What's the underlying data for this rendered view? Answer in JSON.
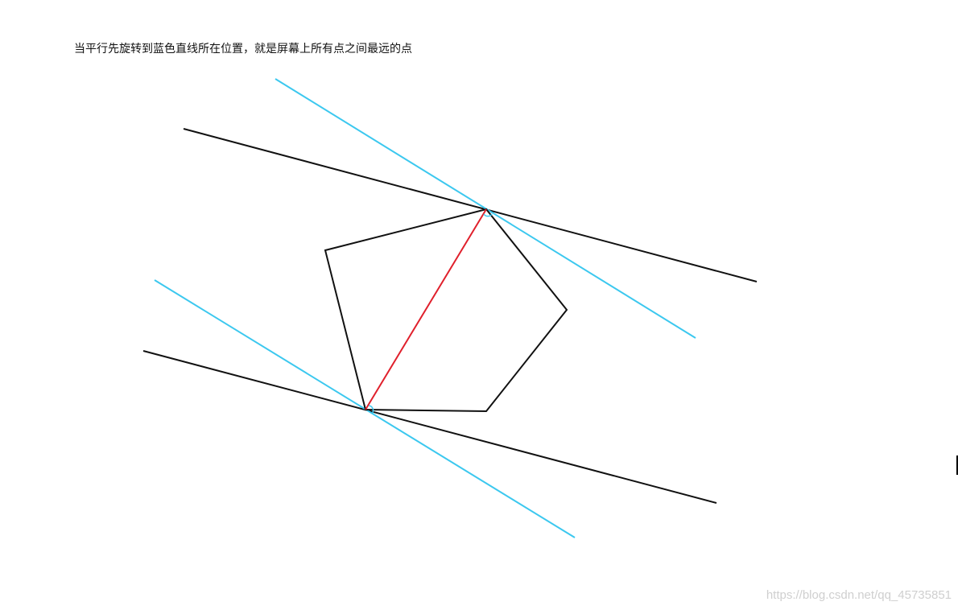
{
  "caption": "当平行先旋转到蓝色直线所在位置，就是屏幕上所有点之间最远的点",
  "watermark": "https://blog.csdn.net/qq_45735851",
  "colors": {
    "polygon": "#111111",
    "black_line": "#111111",
    "blue_line": "#3cc8ef",
    "diameter": "#e0202c"
  }
}
